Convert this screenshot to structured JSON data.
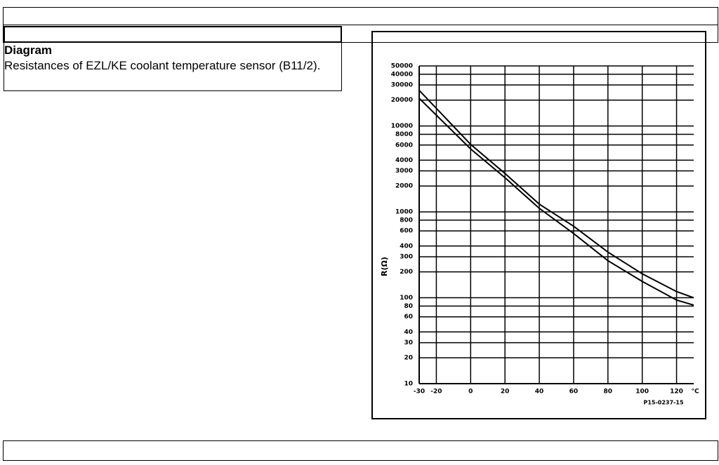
{
  "heading": "Diagram",
  "description": "Resistances of EZL/KE coolant temperature sensor (B11/2).",
  "chart_data": {
    "type": "line",
    "ylabel": "R(Ω)",
    "x_unit": "°C",
    "figure_code": "P15-0237-15",
    "x": [
      -30,
      0,
      20,
      40,
      60,
      80,
      100,
      120,
      130
    ],
    "series": [
      {
        "color": "#000000",
        "values": [
          26000,
          6100,
          2800,
          1230,
          680,
          340,
          190,
          118,
          100
        ]
      },
      {
        "color": "#000000",
        "values": [
          21000,
          5400,
          2500,
          1100,
          560,
          270,
          155,
          94,
          82
        ]
      }
    ],
    "xlim": [
      -30,
      130
    ],
    "xticks": [
      -30,
      -20,
      0,
      20,
      40,
      60,
      80,
      100,
      120
    ],
    "ylim": [
      10,
      50000
    ],
    "yticks": [
      50000,
      40000,
      30000,
      20000,
      10000,
      8000,
      6000,
      4000,
      3000,
      2000,
      1000,
      800,
      600,
      400,
      300,
      200,
      100,
      80,
      60,
      40,
      30,
      20,
      10
    ],
    "log_y": true,
    "grid": true
  }
}
